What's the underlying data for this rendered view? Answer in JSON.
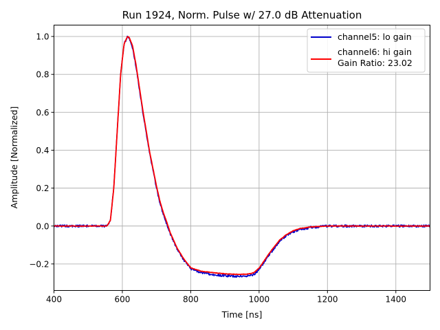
{
  "chart_data": {
    "type": "line",
    "title": "Run 1924, Norm. Pulse w/ 27.0 dB Attenuation",
    "xlabel": "Time [ns]",
    "ylabel": "Amplitude [Normalized]",
    "xlim": [
      400,
      1500
    ],
    "ylim": [
      -0.34,
      1.06
    ],
    "xticks": [
      400,
      600,
      800,
      1000,
      1200,
      1400
    ],
    "yticks": [
      -0.2,
      0.0,
      0.2,
      0.4,
      0.6,
      0.8,
      1.0
    ],
    "ytick_labels": [
      "−0.2",
      "0.0",
      "0.2",
      "0.4",
      "0.6",
      "0.8",
      "1.0"
    ],
    "grid": true,
    "legend_position": "top-right",
    "legend": [
      {
        "label": "channel5: lo gain",
        "color": "#0000cc"
      },
      {
        "label": "channel6: hi gain",
        "label2": "Gain Ratio: 23.02",
        "color": "#ff0000"
      }
    ],
    "series": [
      {
        "name": "channel5: lo gain",
        "color": "#0000cc",
        "noise": 0.006,
        "x": [
          400,
          500,
          555,
          565,
          575,
          585,
          595,
          605,
          615,
          620,
          630,
          640,
          650,
          660,
          670,
          680,
          690,
          700,
          710,
          720,
          730,
          740,
          760,
          780,
          800,
          830,
          860,
          900,
          940,
          970,
          985,
          1000,
          1015,
          1030,
          1045,
          1060,
          1080,
          1100,
          1120,
          1150,
          1180,
          1200,
          1300,
          1400,
          1500
        ],
        "y": [
          0.0,
          0.0,
          0.0,
          0.03,
          0.2,
          0.5,
          0.8,
          0.96,
          1.0,
          0.99,
          0.94,
          0.84,
          0.72,
          0.6,
          0.49,
          0.38,
          0.29,
          0.2,
          0.12,
          0.06,
          0.01,
          -0.04,
          -0.12,
          -0.18,
          -0.225,
          -0.245,
          -0.255,
          -0.262,
          -0.265,
          -0.262,
          -0.255,
          -0.23,
          -0.19,
          -0.15,
          -0.115,
          -0.08,
          -0.05,
          -0.03,
          -0.018,
          -0.008,
          -0.003,
          0.0,
          0.0,
          0.0,
          0.0
        ]
      },
      {
        "name": "channel6: hi gain",
        "color": "#ff0000",
        "noise": 0.0012,
        "x": [
          400,
          500,
          555,
          565,
          575,
          585,
          595,
          605,
          615,
          620,
          630,
          640,
          650,
          660,
          670,
          680,
          690,
          700,
          710,
          720,
          730,
          740,
          760,
          780,
          800,
          830,
          860,
          900,
          940,
          970,
          985,
          1000,
          1015,
          1030,
          1045,
          1060,
          1080,
          1100,
          1120,
          1150,
          1180,
          1200,
          1300,
          1400,
          1500
        ],
        "y": [
          0.0,
          0.0,
          0.0,
          0.03,
          0.2,
          0.5,
          0.8,
          0.96,
          1.0,
          0.995,
          0.95,
          0.85,
          0.73,
          0.61,
          0.5,
          0.39,
          0.3,
          0.21,
          0.13,
          0.07,
          0.02,
          -0.035,
          -0.115,
          -0.175,
          -0.22,
          -0.238,
          -0.245,
          -0.252,
          -0.255,
          -0.253,
          -0.246,
          -0.222,
          -0.183,
          -0.143,
          -0.108,
          -0.074,
          -0.045,
          -0.025,
          -0.013,
          -0.005,
          -0.002,
          0.0,
          0.0,
          0.0,
          0.0
        ]
      }
    ]
  }
}
